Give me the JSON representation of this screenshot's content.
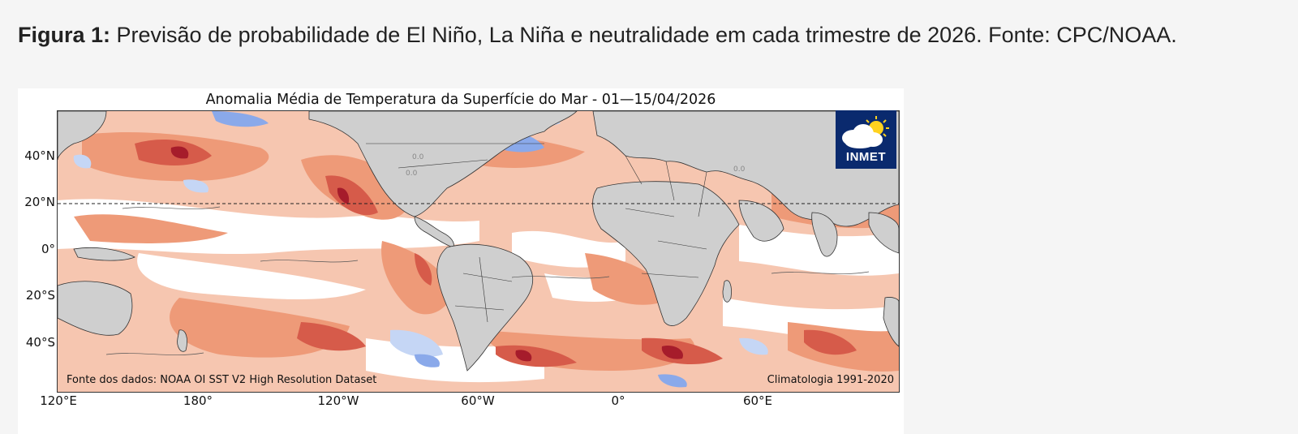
{
  "caption": {
    "label": "Figura 1:",
    "text": " Previsão de probabilidade de El Niño, La Niña e neutralidade em cada trimestre de 2026. Fonte: CPC/NOAA."
  },
  "map": {
    "title": "Anomalia Média de Temperatura da Superfície do Mar - 01—15/04/2026",
    "lat_labels": [
      "40°N",
      "20°N",
      "0°",
      "20°S",
      "40°S"
    ],
    "lon_labels": [
      "120°E",
      "180°",
      "120°W",
      "60°W",
      "0°",
      "60°E"
    ],
    "source_left": "Fonte dos dados: NOAA OI SST V2 High Resolution Dataset",
    "source_right": "Climatologia 1991-2020",
    "contour_labels": [
      "0.0",
      "0.0",
      "0.0"
    ],
    "logo_text": "INMET",
    "colors": {
      "land": "#cfcfcf",
      "warm_light": "#f6c6b0",
      "warm_mid": "#ee9a78",
      "warm_strong": "#d65b4a",
      "warm_extreme": "#a61c2b",
      "cool_light": "#c5d6f5",
      "cool_mid": "#8aa9ea",
      "ocean_neutral": "#ffffff",
      "logo_bg": "#0a2a6e"
    }
  }
}
